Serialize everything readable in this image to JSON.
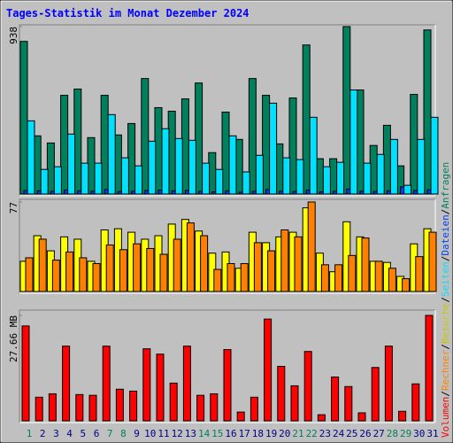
{
  "title": "Tages-Statistik im Monat Dezember 2024",
  "legend_separator": "/",
  "chart_data": [
    {
      "type": "bar",
      "ylim": [
        0,
        938
      ],
      "yticks": [
        938
      ],
      "series": [
        {
          "name": "Anfragen",
          "color": "#00805c",
          "values": [
            855,
            326,
            286,
            553,
            588,
            316,
            553,
            331,
            395,
            647,
            484,
            464,
            533,
            622,
            232,
            459,
            306,
            647,
            553,
            281,
            538,
            835,
            198,
            198,
            938,
            583,
            272,
            385,
            158,
            558,
            919
          ]
        },
        {
          "name": "Dateien",
          "color": "#0040ff",
          "values": [
            20,
            18,
            15,
            22,
            18,
            16,
            25,
            14,
            15,
            20,
            22,
            18,
            20,
            15,
            12,
            18,
            10,
            15,
            25,
            16,
            14,
            22,
            12,
            15,
            28,
            16,
            14,
            18,
            40,
            20,
            24
          ]
        },
        {
          "name": "Seiten",
          "color": "#00e0ff",
          "values": [
            410,
            138,
            153,
            336,
            173,
            173,
            445,
            203,
            158,
            296,
            366,
            311,
            301,
            173,
            138,
            326,
            124,
            217,
            509,
            203,
            193,
            430,
            153,
            178,
            583,
            173,
            222,
            306,
            49,
            306,
            430
          ]
        }
      ]
    },
    {
      "type": "bar",
      "ylim": [
        0,
        77
      ],
      "yticks": [
        77
      ],
      "series": [
        {
          "name": "Besuche",
          "color": "#ffff00",
          "values": [
            26,
            48,
            35,
            47,
            45,
            26,
            53,
            54,
            51,
            45,
            48,
            58,
            62,
            52,
            33,
            34,
            20,
            51,
            42,
            47,
            51,
            72,
            33,
            17,
            60,
            47,
            26,
            25,
            13,
            41,
            54
          ]
        },
        {
          "name": "Rechner",
          "color": "#ff8000",
          "values": [
            29,
            45,
            27,
            34,
            29,
            24,
            40,
            36,
            41,
            37,
            32,
            45,
            59,
            48,
            19,
            24,
            24,
            42,
            35,
            53,
            47,
            77,
            23,
            23,
            31,
            46,
            26,
            20,
            11,
            30,
            51
          ]
        }
      ]
    },
    {
      "type": "bar",
      "ylim": [
        0,
        27.66
      ],
      "yticks": [
        {
          "value": 27.66,
          "label": "27.66 MB"
        }
      ],
      "categories": [
        "1",
        "2",
        "3",
        "4",
        "5",
        "6",
        "7",
        "8",
        "9",
        "10",
        "11",
        "12",
        "13",
        "14",
        "15",
        "16",
        "17",
        "18",
        "19",
        "20",
        "21",
        "22",
        "23",
        "24",
        "25",
        "26",
        "27",
        "28",
        "29",
        "30",
        "31"
      ],
      "category_colors": [
        "#00805c",
        "#00008b",
        "#00008b",
        "#00008b",
        "#00008b",
        "#00008b",
        "#00805c",
        "#00805c",
        "#00008b",
        "#00008b",
        "#00008b",
        "#00008b",
        "#00008b",
        "#00805c",
        "#00805c",
        "#00008b",
        "#00008b",
        "#00008b",
        "#00008b",
        "#00008b",
        "#00805c",
        "#00805c",
        "#00008b",
        "#00008b",
        "#00008b",
        "#00008b",
        "#00008b",
        "#00805c",
        "#00805c",
        "#00008b",
        "#00008b"
      ],
      "series": [
        {
          "name": "Volumen",
          "color": "#ff0000",
          "values": [
            24.9,
            6.2,
            7.1,
            19.6,
            6.9,
            6.7,
            19.6,
            8.3,
            7.8,
            18.9,
            17.5,
            9.9,
            19.6,
            6.7,
            7.1,
            18.7,
            2.3,
            6.2,
            26.7,
            14.3,
            9.2,
            18.2,
            1.6,
            11.5,
            9.0,
            2.1,
            14.0,
            19.6,
            2.5,
            9.7,
            27.66
          ]
        }
      ]
    }
  ]
}
